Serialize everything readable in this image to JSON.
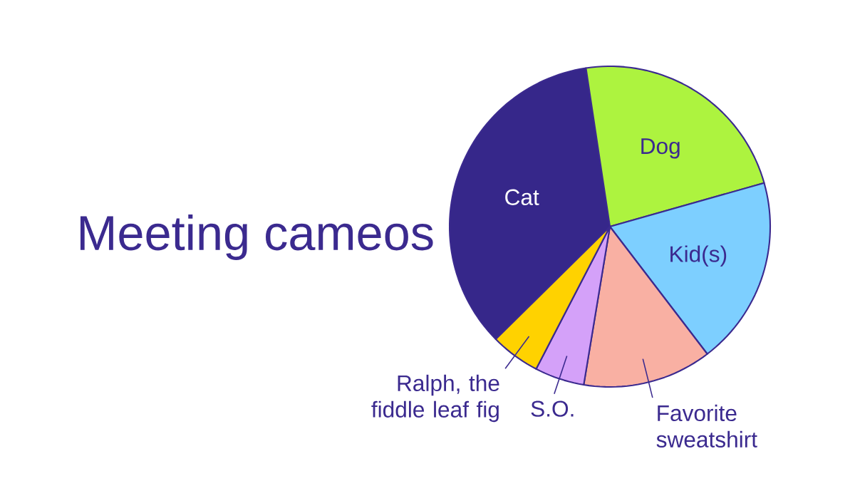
{
  "chart_data": {
    "type": "pie",
    "title": "Meeting cameos",
    "categories": [
      "Cat",
      "Dog",
      "Kid(s)",
      "Favorite sweatshirt",
      "S.O.",
      "Ralph, the fiddle leaf fig"
    ],
    "values": [
      35,
      23,
      19,
      13,
      5,
      5
    ],
    "colors": [
      "#36278a",
      "#adf33f",
      "#7dcfff",
      "#f9b0a3",
      "#d4a1f9",
      "#ffd200"
    ]
  }
}
